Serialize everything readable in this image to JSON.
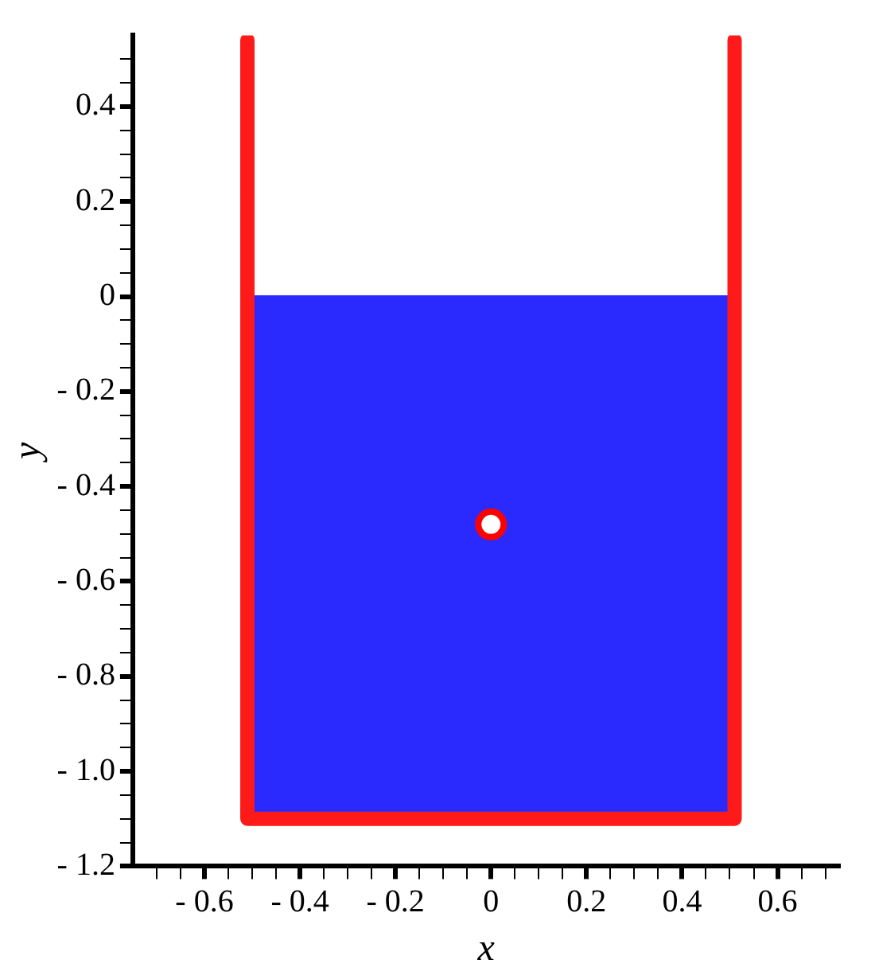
{
  "chart_data": {
    "type": "scatter",
    "xlabel": "x",
    "ylabel": "y",
    "xlim": [
      -0.75,
      0.73
    ],
    "ylim": [
      -1.2,
      0.55
    ],
    "xticks": [
      {
        "value": -0.7,
        "label": null
      },
      {
        "value": -0.65,
        "label": null
      },
      {
        "value": -0.6,
        "label": "- 0.6"
      },
      {
        "value": -0.55,
        "label": null
      },
      {
        "value": -0.5,
        "label": null
      },
      {
        "value": -0.45,
        "label": null
      },
      {
        "value": -0.4,
        "label": "- 0.4"
      },
      {
        "value": -0.35,
        "label": null
      },
      {
        "value": -0.3,
        "label": null
      },
      {
        "value": -0.25,
        "label": null
      },
      {
        "value": -0.2,
        "label": "- 0.2"
      },
      {
        "value": -0.15,
        "label": null
      },
      {
        "value": -0.1,
        "label": null
      },
      {
        "value": -0.05,
        "label": null
      },
      0,
      {
        "value": 0.05,
        "label": null
      },
      {
        "value": 0.1,
        "label": null
      },
      {
        "value": 0.15,
        "label": null
      },
      0.2,
      {
        "value": 0.25,
        "label": null
      },
      {
        "value": 0.3,
        "label": null
      },
      {
        "value": 0.35,
        "label": null
      },
      0.4,
      {
        "value": 0.45,
        "label": null
      },
      {
        "value": 0.5,
        "label": null
      },
      {
        "value": 0.55,
        "label": null
      },
      0.6,
      {
        "value": 0.65,
        "label": null
      },
      {
        "value": 0.7,
        "label": null
      }
    ],
    "yticks": [
      {
        "value": -1.2,
        "label": "- 1.2"
      },
      {
        "value": -1.15,
        "label": null
      },
      {
        "value": -1.1,
        "label": null
      },
      {
        "value": -1.05,
        "label": null
      },
      {
        "value": -1.0,
        "label": "- 1.0"
      },
      {
        "value": -0.95,
        "label": null
      },
      {
        "value": -0.9,
        "label": null
      },
      {
        "value": -0.85,
        "label": null
      },
      {
        "value": -0.8,
        "label": "- 0.8"
      },
      {
        "value": -0.75,
        "label": null
      },
      {
        "value": -0.7,
        "label": null
      },
      {
        "value": -0.65,
        "label": null
      },
      {
        "value": -0.6,
        "label": "- 0.6"
      },
      {
        "value": -0.55,
        "label": null
      },
      {
        "value": -0.5,
        "label": null
      },
      {
        "value": -0.45,
        "label": null
      },
      {
        "value": -0.4,
        "label": "- 0.4"
      },
      {
        "value": -0.35,
        "label": null
      },
      {
        "value": -0.3,
        "label": null
      },
      {
        "value": -0.25,
        "label": null
      },
      {
        "value": -0.2,
        "label": "- 0.2"
      },
      {
        "value": -0.15,
        "label": null
      },
      {
        "value": -0.1,
        "label": null
      },
      {
        "value": -0.05,
        "label": null
      },
      0,
      {
        "value": 0.05,
        "label": null
      },
      {
        "value": 0.1,
        "label": null
      },
      {
        "value": 0.15,
        "label": null
      },
      0.2,
      {
        "value": 0.25,
        "label": null
      },
      {
        "value": 0.3,
        "label": null
      },
      {
        "value": 0.35,
        "label": null
      },
      0.4,
      {
        "value": 0.45,
        "label": null
      },
      {
        "value": 0.5,
        "label": null
      }
    ],
    "grid": false,
    "legend": false,
    "series": [
      {
        "type": "scatter",
        "marker": "square",
        "color": "#2a2aff",
        "x": [
          -0.45,
          -0.35,
          -0.25,
          -0.15,
          -0.05,
          0.05,
          0.15,
          0.25,
          0.35,
          0.45,
          -0.45,
          -0.35,
          -0.25,
          -0.15,
          -0.05,
          0.05,
          0.15,
          0.25,
          0.35,
          0.45,
          -0.45,
          -0.35,
          -0.25,
          -0.15,
          -0.05,
          0.05,
          0.15,
          0.25,
          0.35,
          0.45,
          -0.45,
          -0.35,
          -0.25,
          -0.15,
          -0.05,
          0.05,
          0.15,
          0.25,
          0.35,
          0.45,
          -0.45,
          -0.35,
          -0.25,
          -0.15,
          -0.05,
          0.05,
          0.15,
          0.25,
          0.35,
          0.45,
          -0.45,
          -0.35,
          -0.25,
          -0.15,
          -0.05,
          0.05,
          0.15,
          0.25,
          0.35,
          0.45,
          -0.45,
          -0.35,
          -0.25,
          -0.15,
          -0.05,
          0.05,
          0.15,
          0.25,
          0.35,
          0.45,
          -0.45,
          -0.35,
          -0.25,
          -0.15,
          -0.05,
          0.05,
          0.15,
          0.25,
          0.35,
          0.45,
          -0.45,
          -0.35,
          -0.25,
          -0.15,
          -0.05,
          0.05,
          0.15,
          0.25,
          0.35,
          0.45,
          -0.45,
          -0.35,
          -0.25,
          -0.15,
          -0.05,
          0.05,
          0.15,
          0.25,
          0.35,
          0.45,
          -0.45,
          -0.35,
          -0.25,
          -0.15,
          -0.05,
          0.05,
          0.15,
          0.25,
          0.35,
          0.45
        ],
        "values": [
          -0.05,
          -0.05,
          -0.05,
          -0.05,
          -0.05,
          -0.05,
          -0.05,
          -0.05,
          -0.05,
          -0.05,
          -0.15,
          -0.15,
          -0.15,
          -0.15,
          -0.15,
          -0.15,
          -0.15,
          -0.15,
          -0.15,
          -0.15,
          -0.25,
          -0.25,
          -0.25,
          -0.25,
          -0.25,
          -0.25,
          -0.25,
          -0.25,
          -0.25,
          -0.25,
          -0.35,
          -0.35,
          -0.35,
          -0.35,
          -0.35,
          -0.35,
          -0.35,
          -0.35,
          -0.35,
          -0.35,
          -0.45,
          -0.45,
          -0.45,
          -0.45,
          -0.45,
          -0.45,
          -0.45,
          -0.45,
          -0.45,
          -0.45,
          -0.55,
          -0.55,
          -0.55,
          -0.55,
          -0.55,
          -0.55,
          -0.55,
          -0.55,
          -0.55,
          -0.55,
          -0.65,
          -0.65,
          -0.65,
          -0.65,
          -0.65,
          -0.65,
          -0.65,
          -0.65,
          -0.65,
          -0.65,
          -0.75,
          -0.75,
          -0.75,
          -0.75,
          -0.75,
          -0.75,
          -0.75,
          -0.75,
          -0.75,
          -0.75,
          -0.85,
          -0.85,
          -0.85,
          -0.85,
          -0.85,
          -0.85,
          -0.85,
          -0.85,
          -0.85,
          -0.85,
          -0.95,
          -0.95,
          -0.95,
          -0.95,
          -0.95,
          -0.95,
          -0.95,
          -0.95,
          -0.95,
          -0.95,
          -1.05,
          -1.05,
          -1.05,
          -1.05,
          -1.05,
          -1.05,
          -1.05,
          -1.05,
          -1.05,
          -1.05
        ]
      },
      {
        "type": "line",
        "marker": "none",
        "color": "#ff1a1a",
        "x": [
          -0.51,
          -0.51,
          0.51,
          0.51
        ],
        "values": [
          0.54,
          -1.1,
          -1.1,
          0.54
        ]
      },
      {
        "type": "scatter",
        "marker": "circle",
        "color": "#ff0000",
        "x": [
          0
        ],
        "values": [
          -0.48
        ]
      }
    ]
  }
}
